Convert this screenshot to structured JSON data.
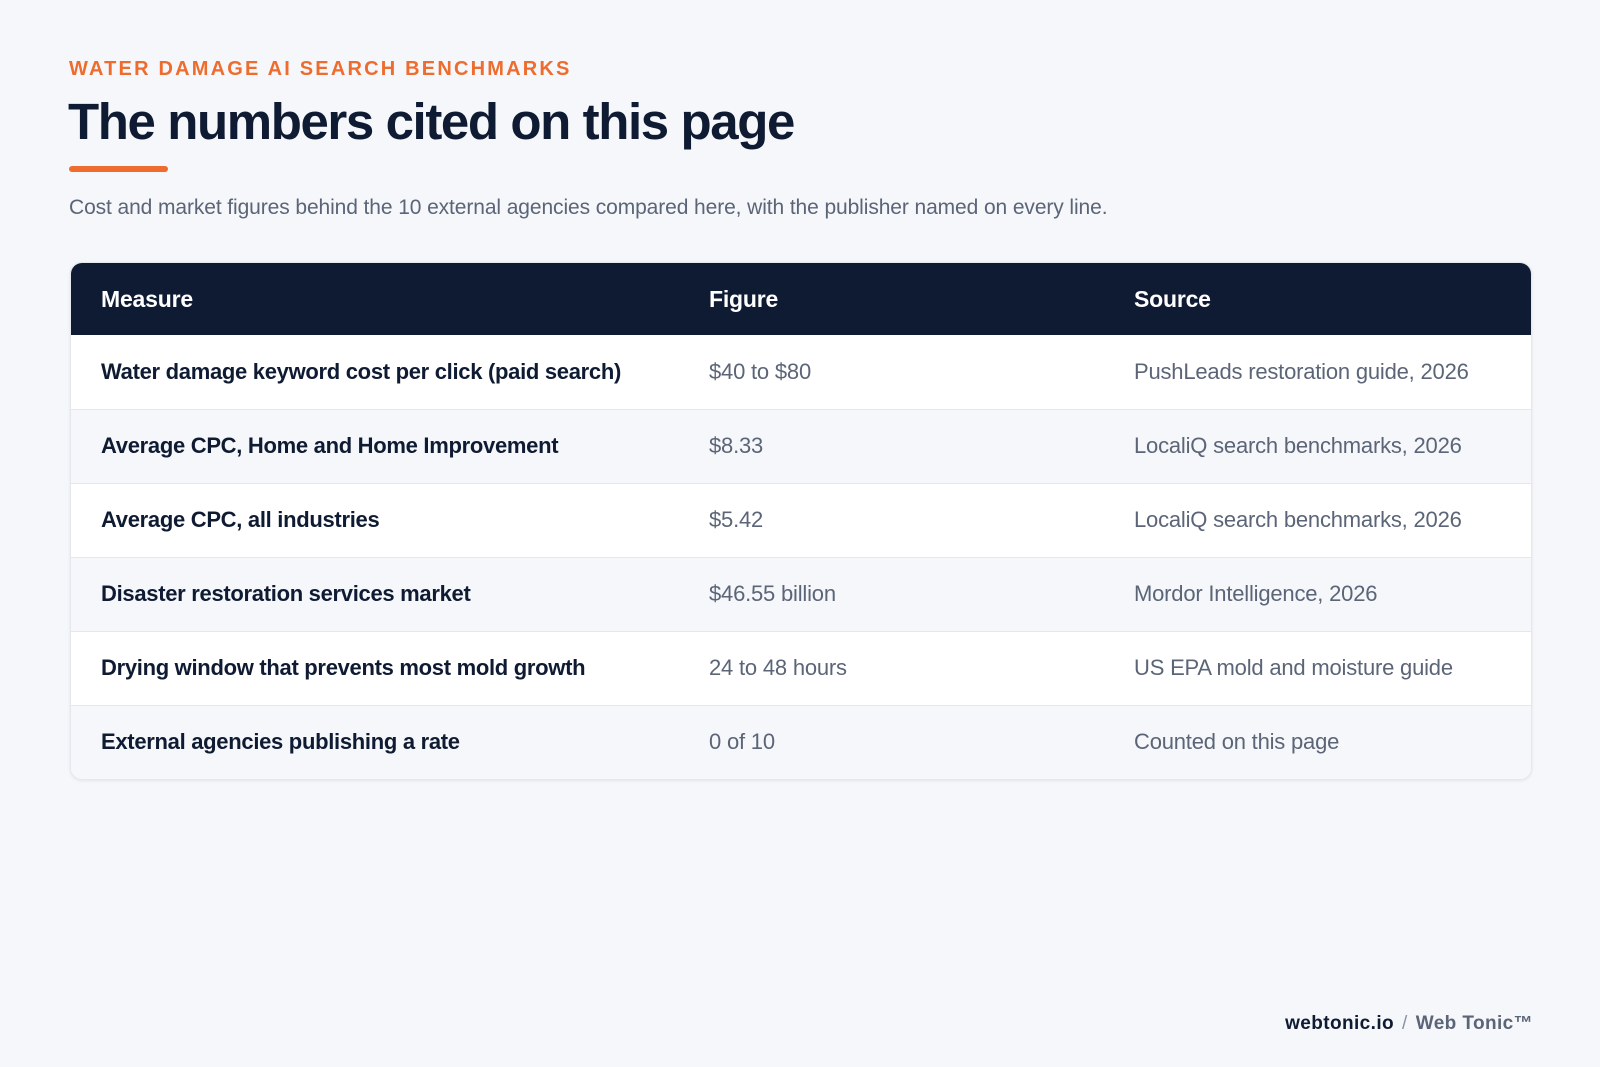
{
  "header": {
    "eyebrow": "WATER DAMAGE AI SEARCH BENCHMARKS",
    "title": "The numbers cited on this page",
    "subtitle": "Cost and market figures behind the 10 external agencies compared here, with the publisher named on every line."
  },
  "colors": {
    "accent": "#ee6c2e",
    "navy": "#0f1b33",
    "muted_text": "#5b6577",
    "background": "#f5f7fa"
  },
  "table": {
    "columns": [
      "Measure",
      "Figure",
      "Source"
    ],
    "rows": [
      {
        "measure": "Water damage keyword cost per click (paid search)",
        "figure": "$40 to $80",
        "source": "PushLeads restoration guide, 2026"
      },
      {
        "measure": "Average CPC, Home and Home Improvement",
        "figure": "$8.33",
        "source": "LocaliQ search benchmarks, 2026"
      },
      {
        "measure": "Average CPC, all industries",
        "figure": "$5.42",
        "source": "LocaliQ search benchmarks, 2026"
      },
      {
        "measure": "Disaster restoration services market",
        "figure": "$46.55 billion",
        "source": "Mordor Intelligence, 2026"
      },
      {
        "measure": "Drying window that prevents most mold growth",
        "figure": "24 to 48 hours",
        "source": "US EPA mold and moisture guide"
      },
      {
        "measure": "External agencies publishing a rate",
        "figure": "0 of 10",
        "source": "Counted on this page"
      }
    ]
  },
  "footer": {
    "site": "webtonic.io",
    "separator": "/",
    "brand": "Web Tonic™"
  }
}
